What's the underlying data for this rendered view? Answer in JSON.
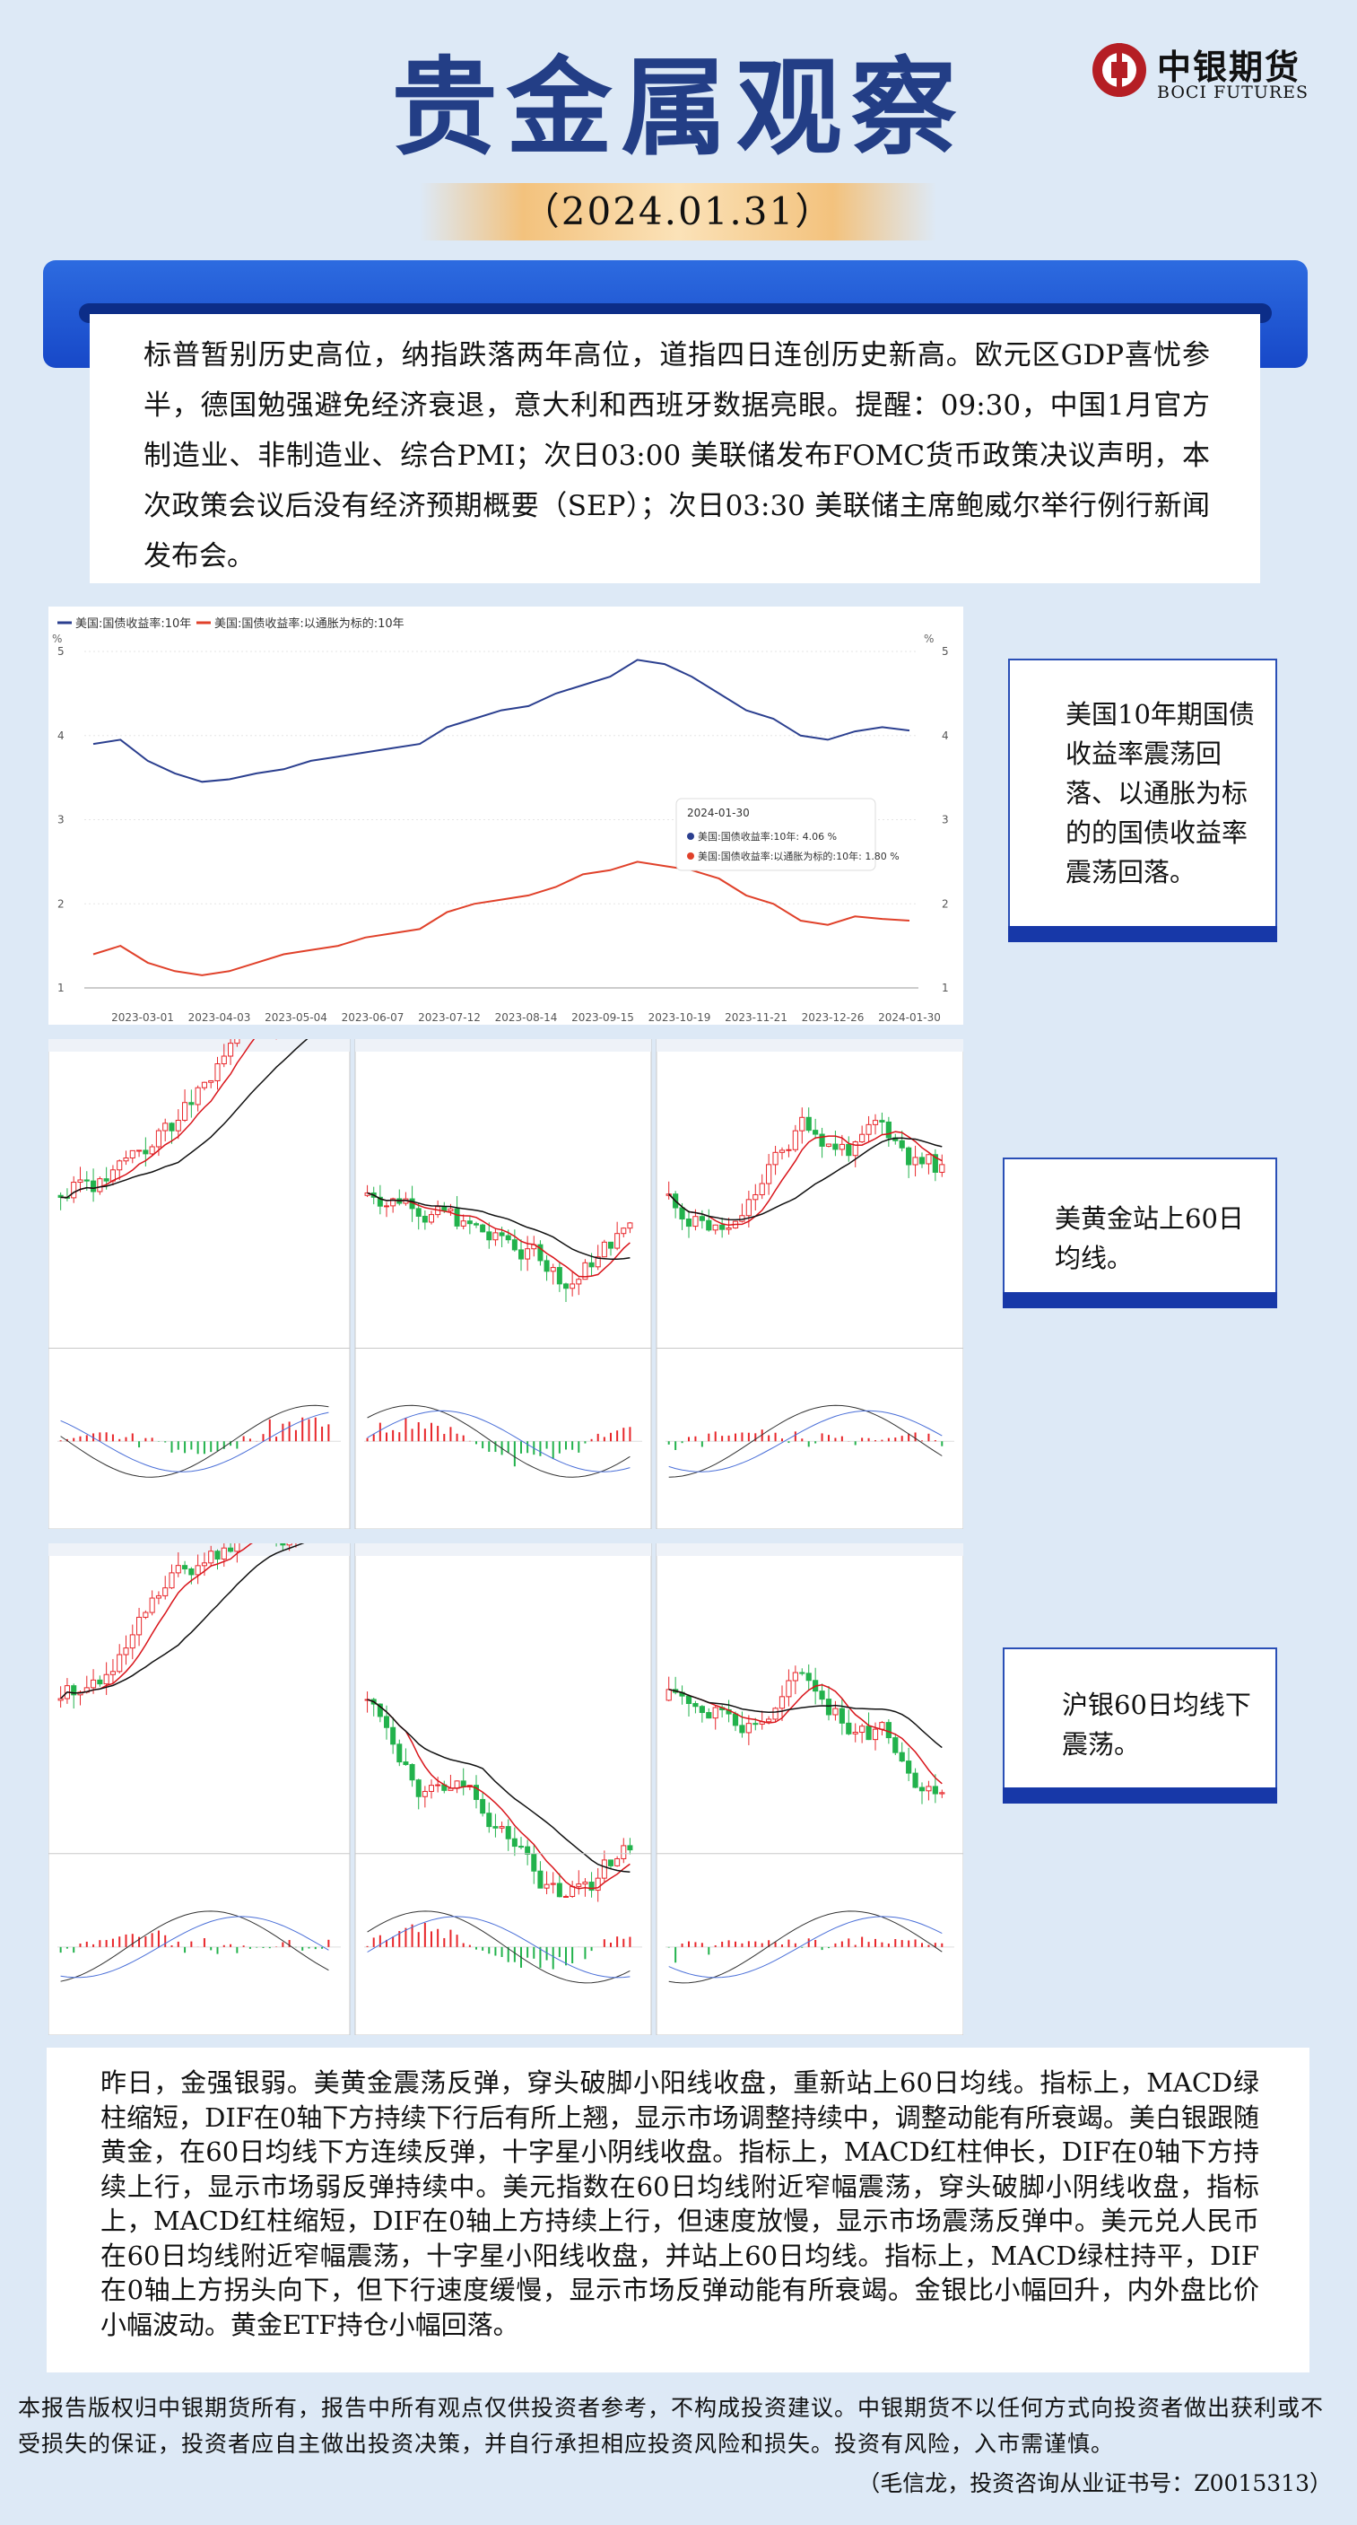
{
  "header": {
    "title": "贵金属观察",
    "date": "（2024.01.31）",
    "logo_cn": "中银期货",
    "logo_en": "BOCI FUTURES"
  },
  "summary": {
    "text": "标普暂别历史高位，纳指跌落两年高位，道指四日连创历史新高。欧元区GDP喜忧参半，德国勉强避免经济衰退，意大利和西班牙数据亮眼。提醒：09:30，中国1月官方制造业、非制造业、综合PMI；次日03:00 美联储发布FOMC货币政策决议声明，本次政策会议后没有经济预期概要（SEP）；次日03:30 美联储主席鲍威尔举行例行新闻发布会。"
  },
  "notes": {
    "yield": "美国10年期国债收益率震荡回落、以通胀为标的的国债收益率震荡回落。",
    "gold": "美黄金站上60日均线。",
    "silver": "沪银60日均线下震荡。"
  },
  "chart_data": {
    "type": "line",
    "legend": [
      "美国:国债收益率:10年",
      "美国:国债收益率:以通胀为标的:10年"
    ],
    "x_ticks": [
      "2023-03-01",
      "2023-04-03",
      "2023-05-04",
      "2023-06-07",
      "2023-07-12",
      "2023-08-14",
      "2023-09-15",
      "2023-10-19",
      "2023-11-21",
      "2023-12-26",
      "2024-01-30"
    ],
    "y_ticks": [
      "1",
      "2",
      "3",
      "4",
      "5"
    ],
    "unit": "%",
    "ylim": [
      1,
      5
    ],
    "series": [
      {
        "name": "美国:国债收益率:10年",
        "color": "#2b3f8f",
        "values": [
          3.9,
          3.95,
          3.7,
          3.55,
          3.45,
          3.48,
          3.55,
          3.6,
          3.7,
          3.75,
          3.8,
          3.85,
          3.9,
          4.1,
          4.2,
          4.3,
          4.35,
          4.5,
          4.6,
          4.7,
          4.9,
          4.85,
          4.7,
          4.5,
          4.3,
          4.2,
          4.0,
          3.95,
          4.05,
          4.1,
          4.06
        ]
      },
      {
        "name": "美国:国债收益率:以通胀为标的:10年",
        "color": "#e0412a",
        "values": [
          1.4,
          1.5,
          1.3,
          1.2,
          1.15,
          1.2,
          1.3,
          1.4,
          1.45,
          1.5,
          1.6,
          1.65,
          1.7,
          1.9,
          2.0,
          2.05,
          2.1,
          2.2,
          2.35,
          2.4,
          2.5,
          2.45,
          2.4,
          2.3,
          2.1,
          2.0,
          1.8,
          1.75,
          1.85,
          1.82,
          1.8
        ]
      }
    ],
    "tooltip": {
      "date": "2024-01-30",
      "row1": "美国:国债收益率:10年:  4.06 %",
      "row2": "美国:国债收益率:以通胀为标的:10年:  1.80 %"
    }
  },
  "analysis": {
    "text": "昨日，金强银弱。美黄金震荡反弹，穿头破脚小阳线收盘，重新站上60日均线。指标上，MACD绿柱缩短，DIF在0轴下方持续下行后有所上翘，显示市场调整持续中，调整动能有所衰竭。美白银跟随黄金，在60日均线下方连续反弹，十字星小阴线收盘。指标上，MACD红柱伸长，DIF在0轴下方持续上行，显示市场弱反弹持续中。美元指数在60日均线附近窄幅震荡，穿头破脚小阴线收盘，指标上，MACD红柱缩短，DIF在0轴上方持续上行，但速度放慢，显示市场震荡反弹中。美元兑人民币在60日均线附近窄幅震荡，十字星小阳线收盘，并站上60日均线。指标上，MACD绿柱持平，DIF在0轴上方拐头向下，但下行速度缓慢，显示市场反弹动能有所衰竭。金银比小幅回升，内外盘比价小幅波动。黄金ETF持仓小幅回落。"
  },
  "footer": {
    "disclaimer": "本报告版权归中银期货所有，报告中所有观点仅供投资者参考，不构成投资建议。中银期货不以任何方式向投资者做出获利或不受损失的保证，投资者应自主做出投资决策，并自行承担相应投资风险和损失。投资有风险，入市需谨慎。",
    "author": "（毛信龙，投资咨询从业证书号：Z0015313）"
  },
  "colors": {
    "title": "#233e86",
    "bar_blue": "#1748c8",
    "accent_orange": "#f07a1c",
    "up": "#e8262a",
    "down": "#22b24c"
  }
}
